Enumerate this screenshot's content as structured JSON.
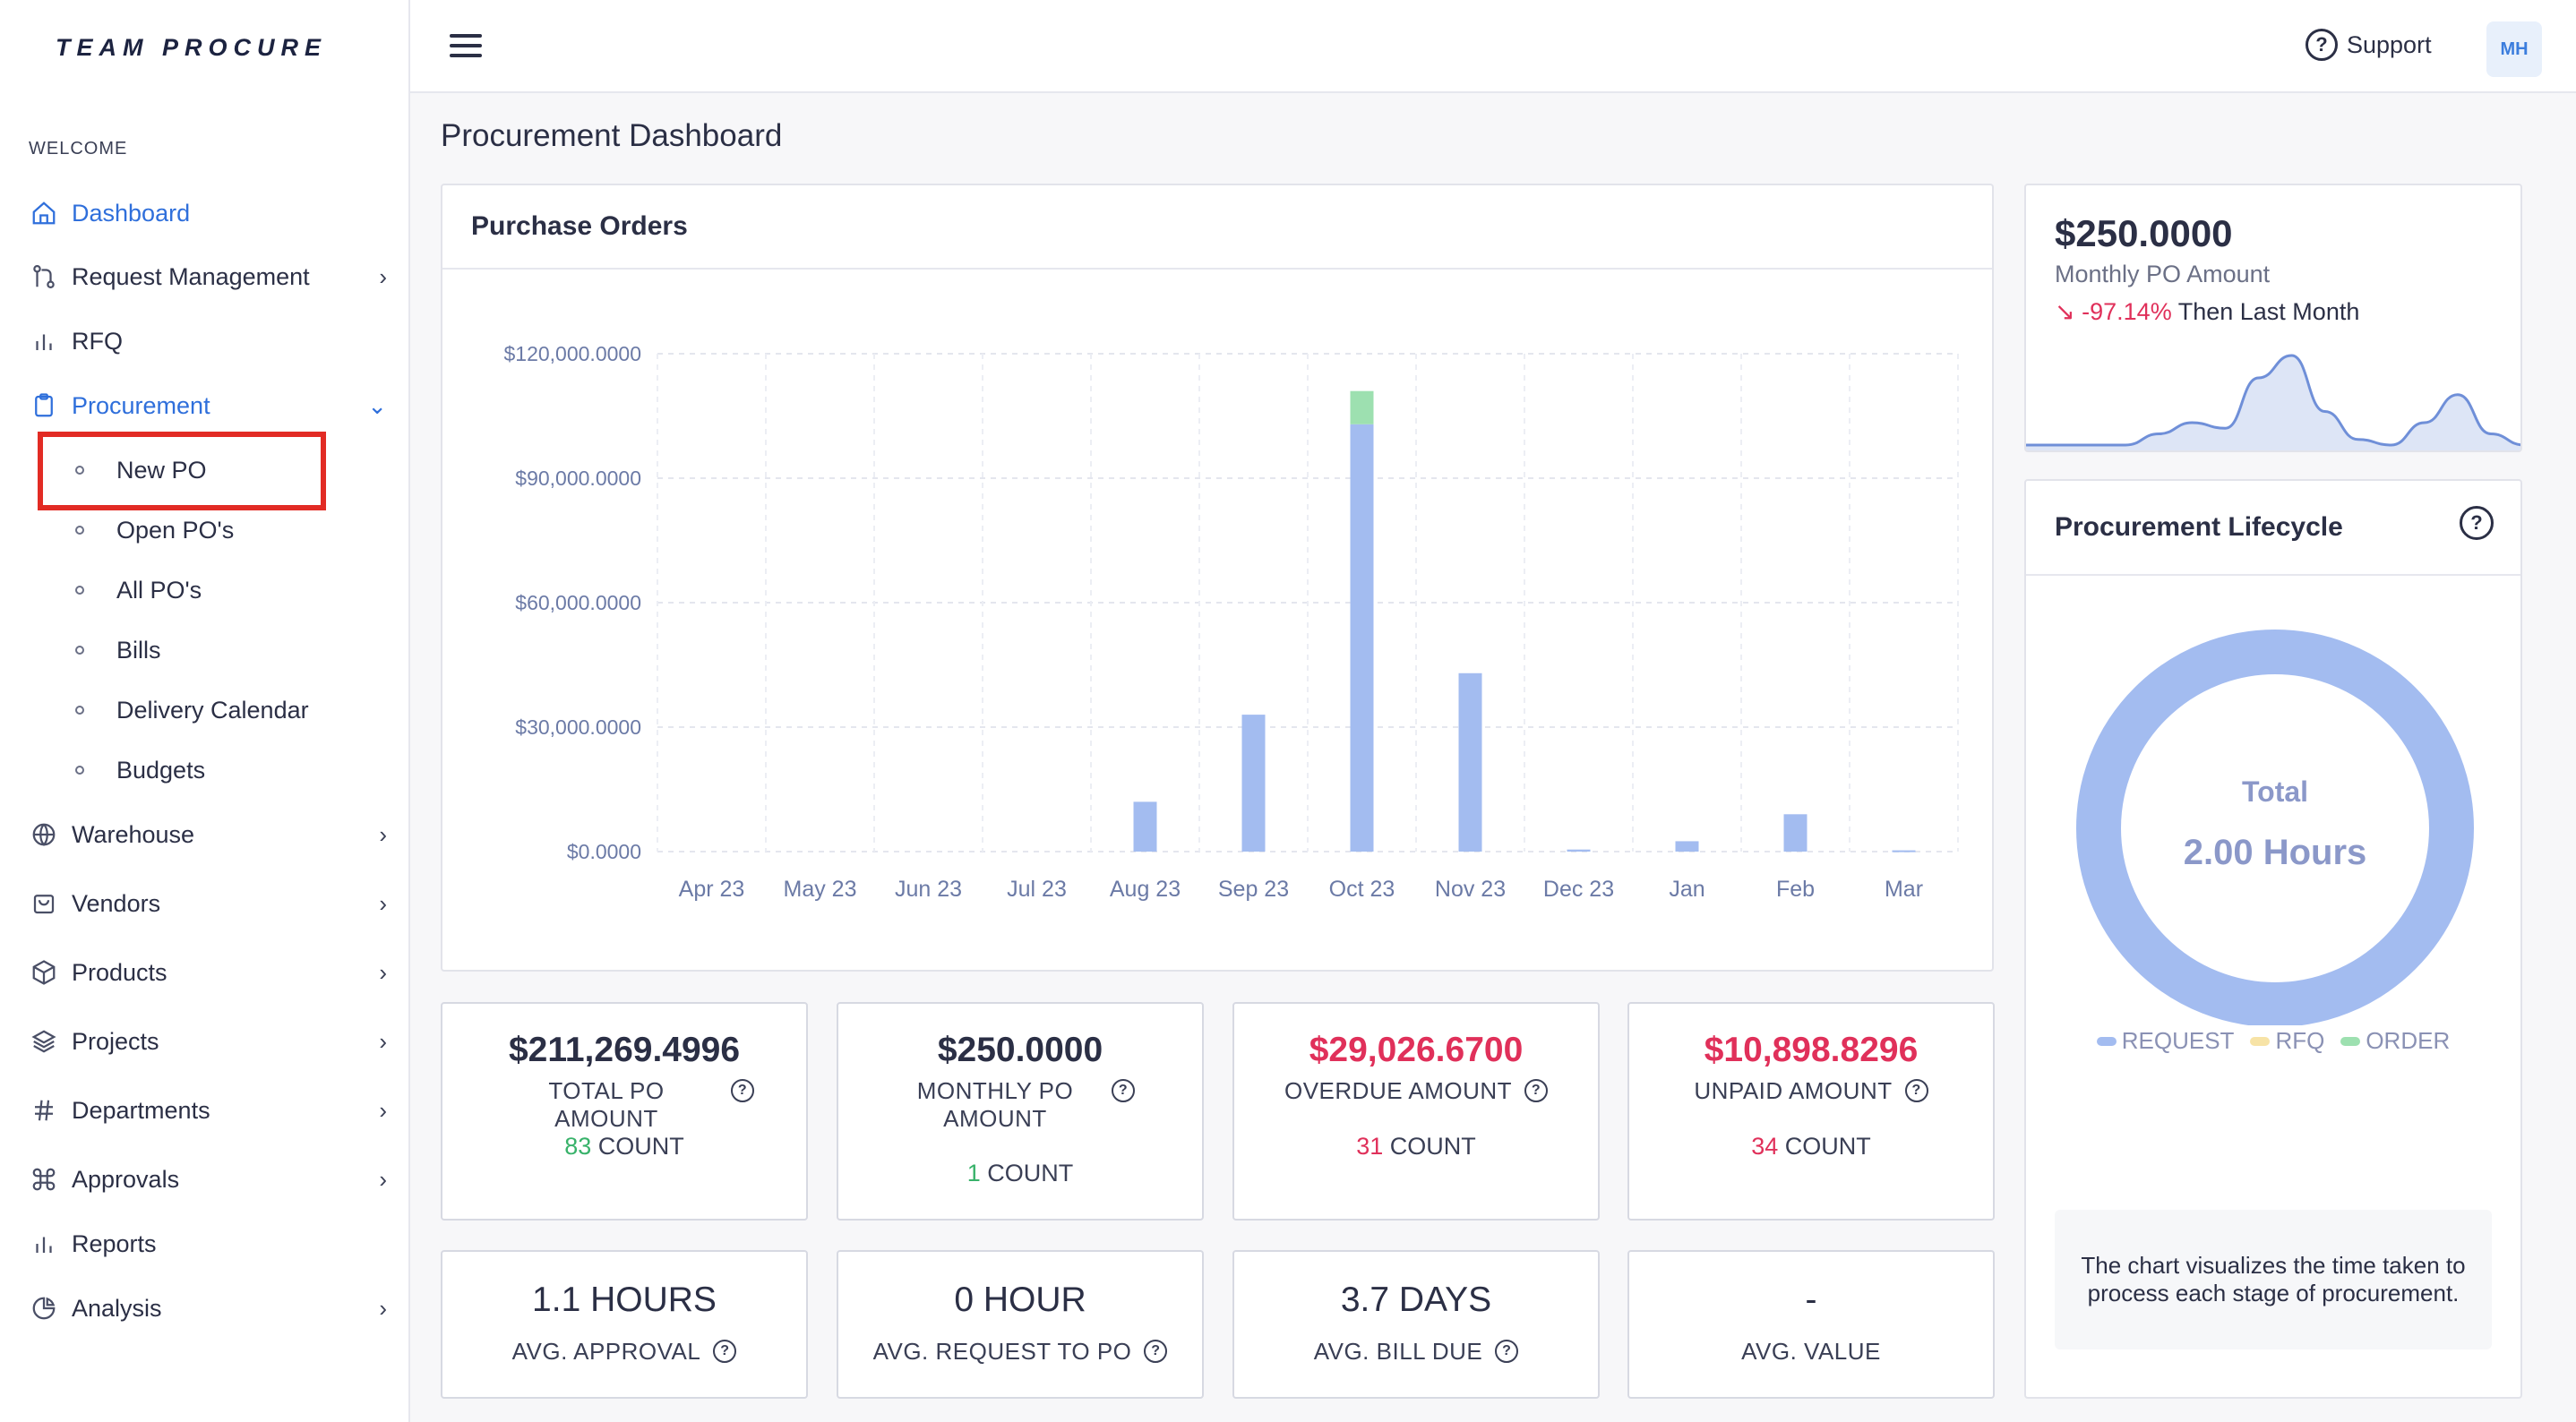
{
  "brand": "TEAM PROCURE",
  "sidebar": {
    "section_label": "WELCOME",
    "items": [
      {
        "label": "Dashboard"
      },
      {
        "label": "Request Management"
      },
      {
        "label": "RFQ"
      },
      {
        "label": "Procurement"
      },
      {
        "label": "Warehouse"
      },
      {
        "label": "Vendors"
      },
      {
        "label": "Products"
      },
      {
        "label": "Projects"
      },
      {
        "label": "Departments"
      },
      {
        "label": "Approvals"
      },
      {
        "label": "Reports"
      },
      {
        "label": "Analysis"
      }
    ],
    "procurement_sub": [
      {
        "label": "New PO"
      },
      {
        "label": "Open PO's"
      },
      {
        "label": "All PO's"
      },
      {
        "label": "Bills"
      },
      {
        "label": "Delivery Calendar"
      },
      {
        "label": "Budgets"
      }
    ]
  },
  "topbar": {
    "support_label": "Support",
    "avatar_initials": "MH"
  },
  "page_title": "Procurement Dashboard",
  "purchase_orders": {
    "title": "Purchase Orders"
  },
  "chart_data": {
    "type": "bar",
    "stacked": true,
    "categories": [
      "Apr 23",
      "May 23",
      "Jun 23",
      "Jul 23",
      "Aug 23",
      "Sep 23",
      "Oct 23",
      "Nov 23",
      "Dec 23",
      "Jan",
      "Feb",
      "Mar"
    ],
    "series": [
      {
        "color": "#a3bcf0",
        "values": [
          0,
          0,
          0,
          0,
          12000,
          33000,
          103000,
          43000,
          500,
          2500,
          9000,
          300
        ]
      },
      {
        "color": "#9de0b0",
        "values": [
          0,
          0,
          0,
          0,
          0,
          0,
          8000,
          0,
          0,
          0,
          0,
          0
        ]
      }
    ],
    "yticks": [
      "$0.0000",
      "$30,000.0000",
      "$60,000.0000",
      "$90,000.0000",
      "$120,000.0000"
    ],
    "ylim": [
      0,
      120000
    ],
    "grid": true
  },
  "stats": [
    {
      "amount": "$211,269.4996",
      "label": "TOTAL PO AMOUNT",
      "count": "83",
      "count_suffix": "COUNT"
    },
    {
      "amount": "$250.0000",
      "label": "MONTHLY PO AMOUNT",
      "count": "1",
      "count_suffix": "COUNT"
    },
    {
      "amount": "$29,026.6700",
      "label": "OVERDUE AMOUNT",
      "count": "31",
      "count_suffix": "COUNT"
    },
    {
      "amount": "$10,898.8296",
      "label": "UNPAID AMOUNT",
      "count": "34",
      "count_suffix": "COUNT"
    }
  ],
  "stats2": [
    {
      "value": "1.1 HOURS",
      "label": "AVG. APPROVAL"
    },
    {
      "value": "0 HOUR",
      "label": "AVG. REQUEST TO PO"
    },
    {
      "value": "3.7 DAYS",
      "label": "AVG. BILL DUE"
    },
    {
      "value": "-",
      "label": "AVG. VALUE"
    }
  ],
  "monthly_kpi": {
    "value": "$250.0000",
    "subtitle": "Monthly PO Amount",
    "delta": "-97.14%",
    "delta_suffix": "Then Last Month",
    "sparkline": [
      0,
      0,
      0,
      0,
      2,
      4,
      3,
      12,
      16,
      6,
      1,
      0,
      4,
      9,
      2,
      0
    ]
  },
  "lifecycle": {
    "title": "Procurement Lifecycle",
    "center_label": "Total",
    "center_value": "2.00 Hours",
    "legend": [
      {
        "label": "REQUEST",
        "color": "#a3bcf0"
      },
      {
        "label": "RFQ",
        "color": "#f7e3a6"
      },
      {
        "label": "ORDER",
        "color": "#9de0b0"
      }
    ],
    "note": "The chart visualizes the time taken to process each stage of procurement."
  }
}
